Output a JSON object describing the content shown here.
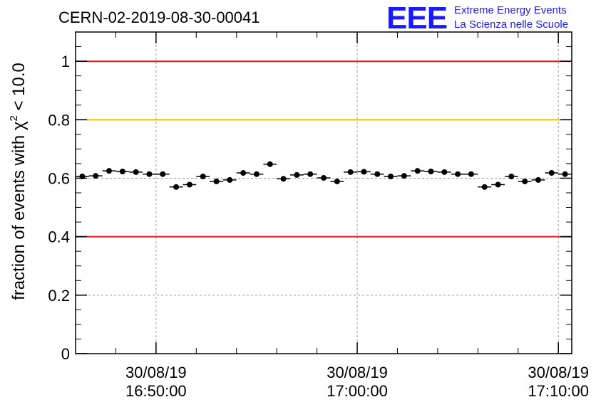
{
  "chart_data": {
    "type": "scatter",
    "title": "CERN-02-2019-08-30-00041",
    "ylabel_main": "fraction of events with ",
    "ylabel_symbol": "χ",
    "ylabel_sup": "2",
    "ylabel_tail": " < 10.0",
    "xlabel": "",
    "xlim": [
      "2019-08-30 16:46:00",
      "2019-08-30 17:10:40"
    ],
    "ylim": [
      0,
      1.1
    ],
    "grid": true,
    "y_ticks": [
      {
        "value": 0,
        "label": "0"
      },
      {
        "value": 0.2,
        "label": "0.2"
      },
      {
        "value": 0.4,
        "label": "0.4"
      },
      {
        "value": 0.6,
        "label": "0.6"
      },
      {
        "value": 0.8,
        "label": "0.8"
      },
      {
        "value": 1.0,
        "label": "1"
      }
    ],
    "x_ticks": [
      {
        "value": "2019-08-30 16:50:00",
        "date": "30/08/19",
        "time": "16:50:00"
      },
      {
        "value": "2019-08-30 17:00:00",
        "date": "30/08/19",
        "time": "17:00:00"
      },
      {
        "value": "2019-08-30 17:10:00",
        "date": "30/08/19",
        "time": "17:10:00"
      }
    ],
    "reference_lines": [
      {
        "y": 1.0,
        "color": "#e8141a"
      },
      {
        "y": 0.8,
        "color": "#ffc000"
      },
      {
        "y": 0.4,
        "color": "#e8141a"
      }
    ],
    "series": [
      {
        "color": "#000000",
        "bin_width_seconds": 40,
        "x": [
          "2019-08-30 16:46:20",
          "2019-08-30 16:47:00",
          "2019-08-30 16:47:40",
          "2019-08-30 16:48:20",
          "2019-08-30 16:49:00",
          "2019-08-30 16:49:40",
          "2019-08-30 16:50:20",
          "2019-08-30 16:51:00",
          "2019-08-30 16:51:40",
          "2019-08-30 16:52:20",
          "2019-08-30 16:53:00",
          "2019-08-30 16:53:40",
          "2019-08-30 16:54:20",
          "2019-08-30 16:55:00",
          "2019-08-30 16:55:40",
          "2019-08-30 16:56:20",
          "2019-08-30 16:57:00",
          "2019-08-30 16:57:40",
          "2019-08-30 16:58:20",
          "2019-08-30 16:59:00",
          "2019-08-30 16:59:40",
          "2019-08-30 17:00:20",
          "2019-08-30 17:01:00",
          "2019-08-30 17:01:40",
          "2019-08-30 17:02:20",
          "2019-08-30 17:03:00",
          "2019-08-30 17:03:40",
          "2019-08-30 17:04:20",
          "2019-08-30 17:05:00",
          "2019-08-30 17:05:40",
          "2019-08-30 17:06:20",
          "2019-08-30 17:07:00",
          "2019-08-30 17:07:40",
          "2019-08-30 17:08:20",
          "2019-08-30 17:09:00",
          "2019-08-30 17:09:40",
          "2019-08-30 17:10:20"
        ],
        "y": [
          0.606,
          0.608,
          0.625,
          0.623,
          0.621,
          0.614,
          0.614,
          0.57,
          0.578,
          0.606,
          0.589,
          0.594,
          0.618,
          0.614,
          0.648,
          0.598,
          0.611,
          0.614,
          0.601,
          0.589,
          0.621,
          0.622,
          0.614,
          0.606,
          0.608,
          0.625,
          0.623,
          0.621,
          0.614,
          0.614,
          0.57,
          0.578,
          0.606,
          0.589,
          0.594,
          0.618,
          0.614
        ],
        "y_err": [
          0.008,
          0.008,
          0.008,
          0.008,
          0.008,
          0.008,
          0.008,
          0.008,
          0.008,
          0.008,
          0.008,
          0.008,
          0.008,
          0.008,
          0.008,
          0.008,
          0.008,
          0.008,
          0.008,
          0.008,
          0.008,
          0.008,
          0.008,
          0.008,
          0.008,
          0.008,
          0.008,
          0.008,
          0.008,
          0.008,
          0.008,
          0.008,
          0.008,
          0.008,
          0.008,
          0.008,
          0.008
        ]
      }
    ]
  },
  "logo": {
    "mark": "EEE",
    "line1": "Extreme Energy Events",
    "line2": "La Scienza nelle Scuole",
    "color": "#1a1aff"
  }
}
